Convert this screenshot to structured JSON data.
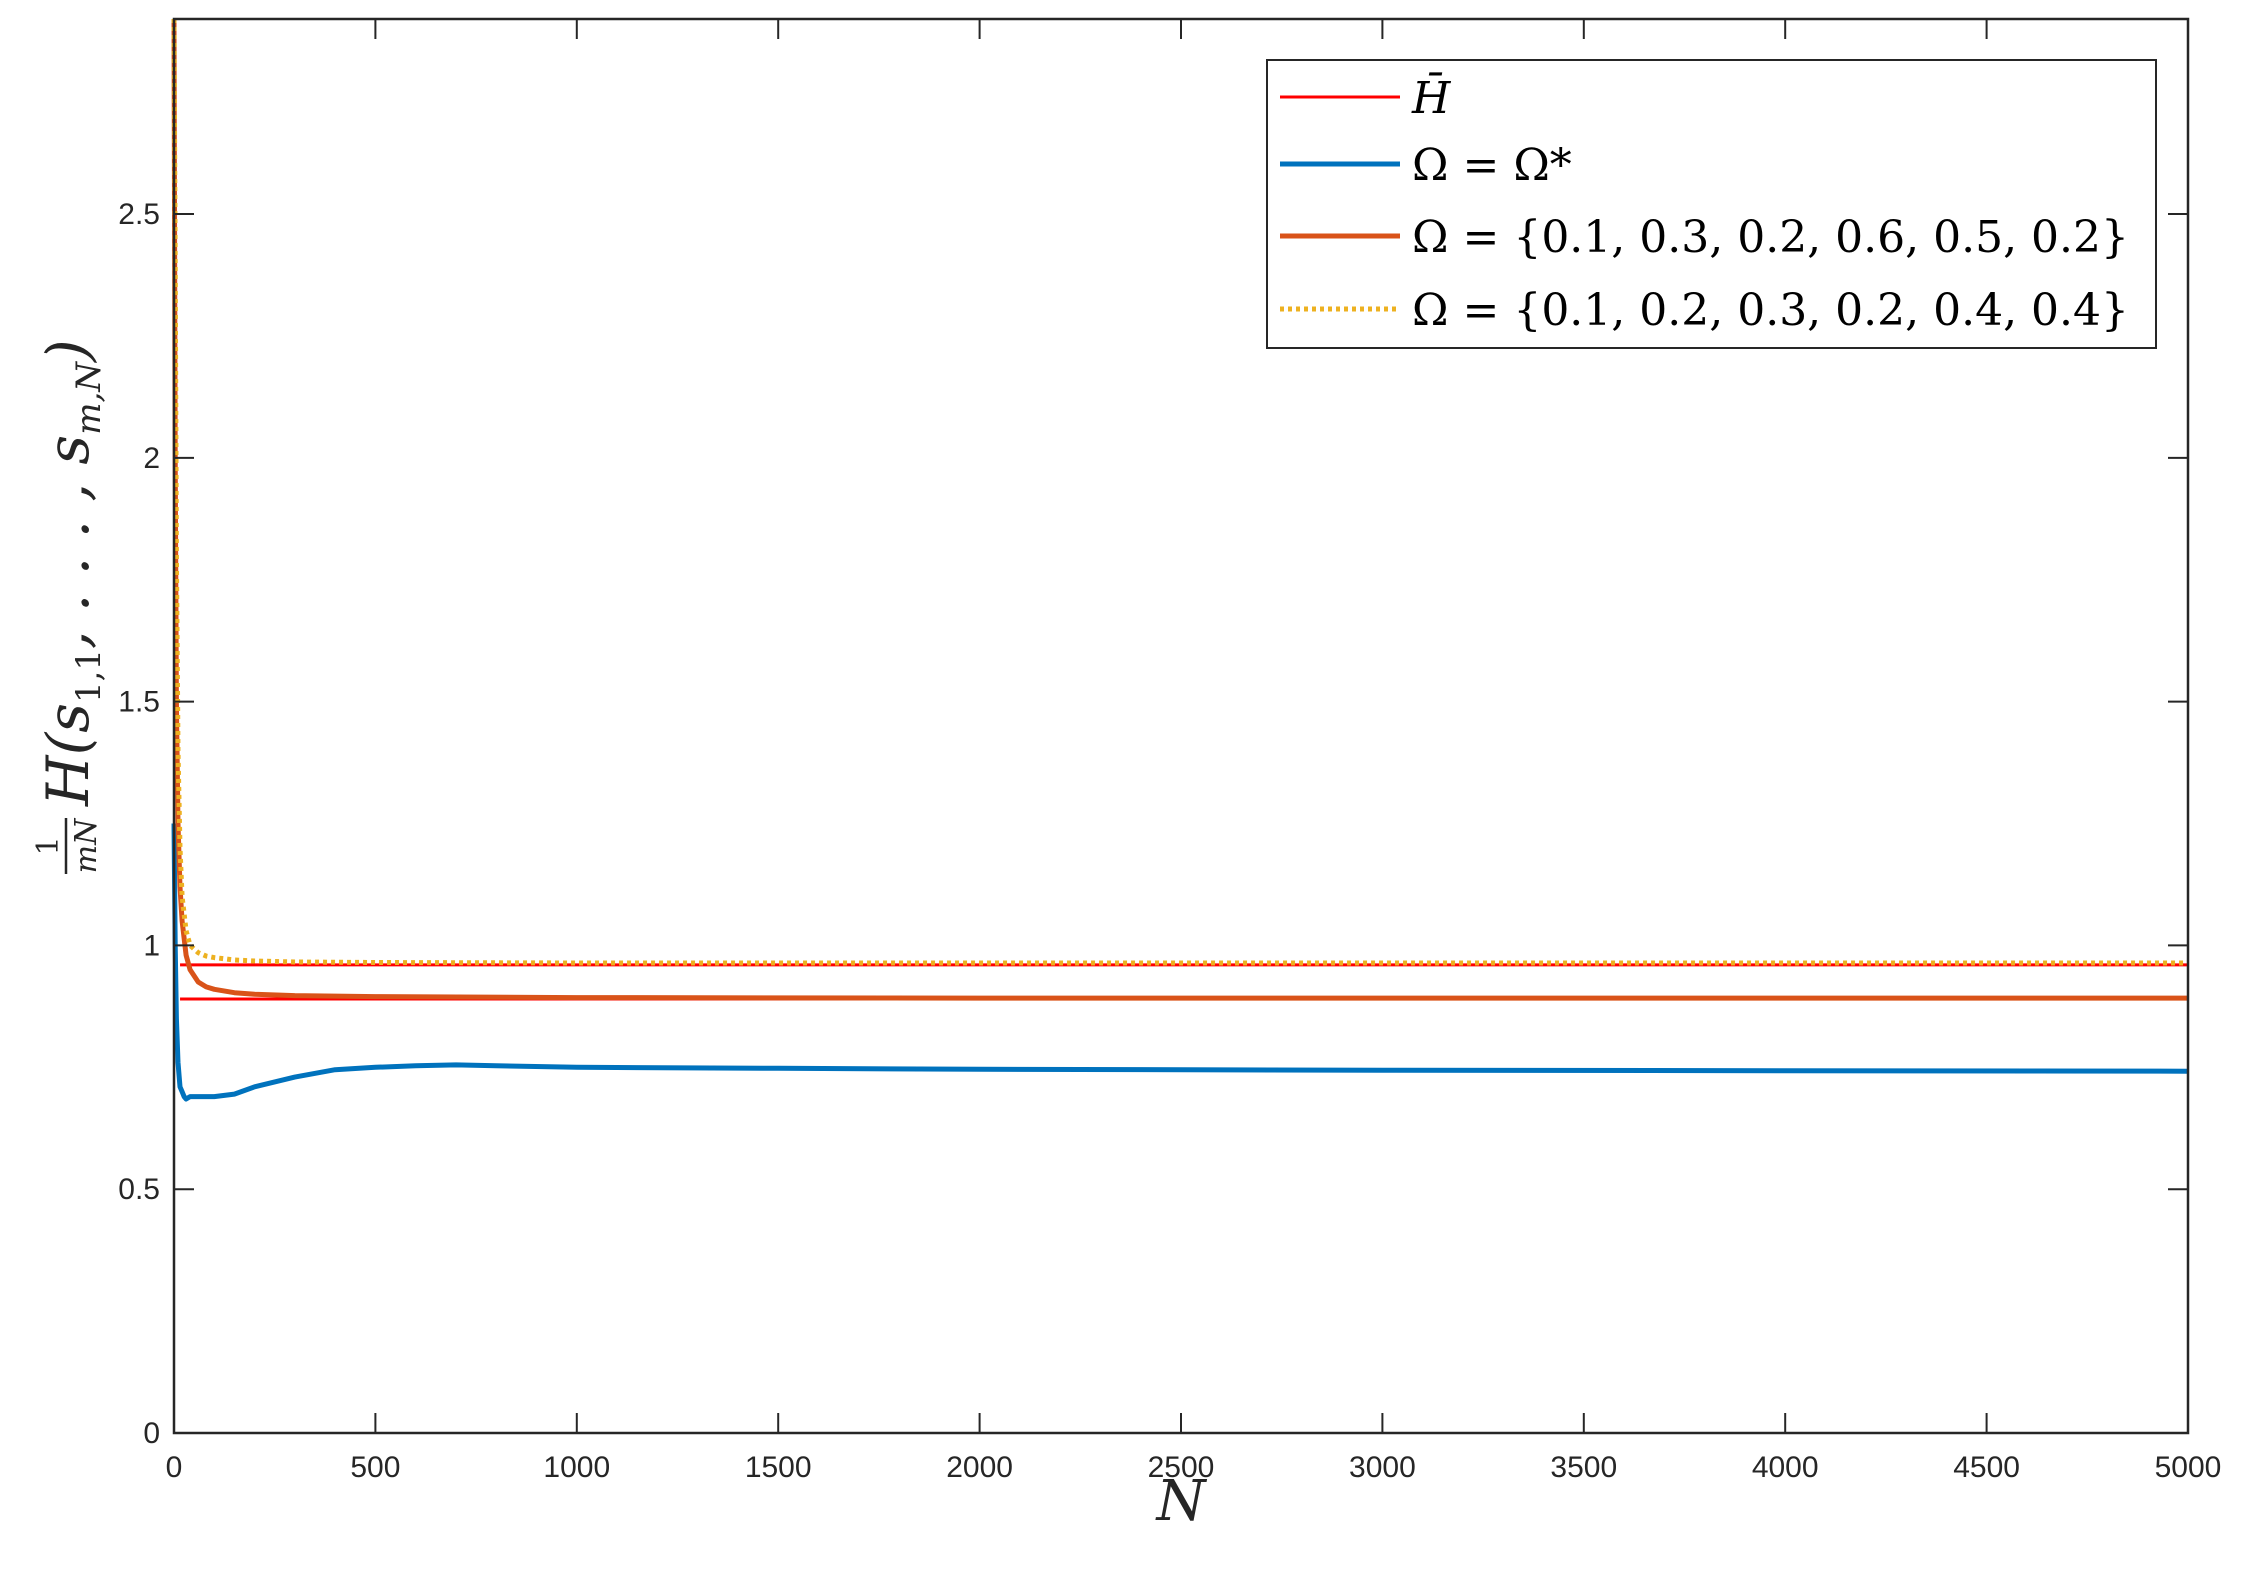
{
  "chart_data": {
    "type": "line",
    "xlabel": "N",
    "ylabel": "(1/mN) H(s_{1,1}, ..., s_{m,N})",
    "xlim": [
      0,
      5000
    ],
    "ylim": [
      0,
      2.9
    ],
    "x_ticks": [
      "0",
      "500",
      "1000",
      "1500",
      "2000",
      "2500",
      "3000",
      "3500",
      "4000",
      "4500",
      "5000"
    ],
    "y_ticks": [
      "0",
      "0.5",
      "1",
      "1.5",
      "2",
      "2.5"
    ],
    "grid": false,
    "legend_position": "top-right",
    "series": [
      {
        "name": "H̄",
        "color": "#ff0000",
        "style": "solid",
        "kind": "bounds",
        "x_start": 15,
        "upper": 0.96,
        "lower": 0.89
      },
      {
        "name": "Ω = Ω*",
        "color": "#0072bd",
        "style": "solid",
        "x": [
          0,
          3,
          6,
          10,
          15,
          20,
          25,
          30,
          40,
          60,
          100,
          150,
          200,
          250,
          300,
          400,
          500,
          600,
          700,
          800,
          1000,
          1500,
          2000,
          3000,
          4000,
          5000
        ],
        "y": [
          1.25,
          1.0,
          0.85,
          0.76,
          0.71,
          0.7,
          0.69,
          0.685,
          0.69,
          0.69,
          0.69,
          0.695,
          0.71,
          0.72,
          0.73,
          0.745,
          0.75,
          0.753,
          0.755,
          0.753,
          0.75,
          0.748,
          0.746,
          0.744,
          0.743,
          0.742
        ]
      },
      {
        "name": "Ω = {0.1, 0.3, 0.2, 0.6, 0.5, 0.2}",
        "color": "#d95319",
        "style": "solid",
        "x": [
          0,
          3,
          6,
          10,
          15,
          20,
          30,
          40,
          60,
          80,
          100,
          150,
          200,
          300,
          500,
          1000,
          2000,
          3000,
          4000,
          5000
        ],
        "y": [
          2.9,
          2.0,
          1.5,
          1.25,
          1.12,
          1.05,
          0.98,
          0.95,
          0.925,
          0.915,
          0.91,
          0.903,
          0.9,
          0.897,
          0.895,
          0.893,
          0.892,
          0.892,
          0.892,
          0.892
        ]
      },
      {
        "name": "Ω = {0.1, 0.2, 0.3, 0.2, 0.4, 0.4}",
        "color": "#edb120",
        "style": "dotted",
        "x": [
          0,
          3,
          6,
          10,
          15,
          20,
          30,
          40,
          60,
          80,
          100,
          150,
          200,
          300,
          500,
          1000,
          2000,
          3000,
          4000,
          5000
        ],
        "y": [
          2.9,
          2.4,
          1.8,
          1.4,
          1.2,
          1.1,
          1.03,
          1.0,
          0.985,
          0.978,
          0.975,
          0.97,
          0.968,
          0.966,
          0.965,
          0.964,
          0.964,
          0.964,
          0.964,
          0.964
        ]
      }
    ]
  }
}
